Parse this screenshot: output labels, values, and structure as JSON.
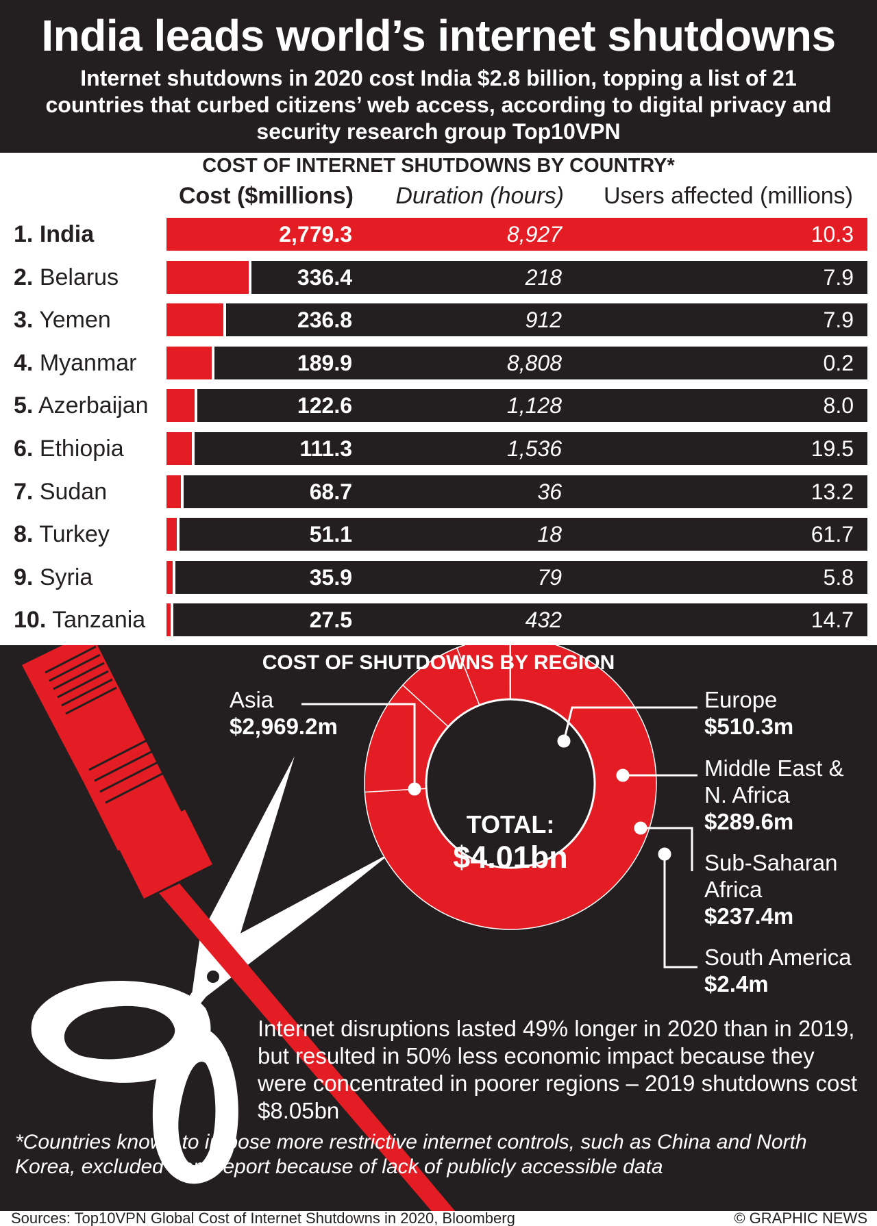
{
  "header": {
    "title": "India leads world’s internet shutdowns",
    "subtitle": "Internet shutdowns in 2020 cost India $2.8 billion, topping a list of 21 countries that curbed citizens’ web access, according to digital privacy and security research group Top10VPN"
  },
  "colors": {
    "dark": "#231f20",
    "red": "#e31d23",
    "white": "#ffffff"
  },
  "chart_data": [
    {
      "type": "bar",
      "title": "COST OF INTERNET SHUTDOWNS BY COUNTRY*",
      "columns": [
        "Cost ($millions)",
        "Duration (hours)",
        "Users affected (millions)"
      ],
      "rows": [
        {
          "rank": "1.",
          "country": "India",
          "cost": "2,779.3",
          "cost_value": 2779.3,
          "duration": "8,927",
          "users": "10.3"
        },
        {
          "rank": "2.",
          "country": "Belarus",
          "cost": "336.4",
          "cost_value": 336.4,
          "duration": "218",
          "users": "7.9"
        },
        {
          "rank": "3.",
          "country": "Yemen",
          "cost": "236.8",
          "cost_value": 236.8,
          "duration": "912",
          "users": "7.9"
        },
        {
          "rank": "4.",
          "country": "Myanmar",
          "cost": "189.9",
          "cost_value": 189.9,
          "duration": "8,808",
          "users": "0.2"
        },
        {
          "rank": "5.",
          "country": "Azerbaijan",
          "cost": "122.6",
          "cost_value": 122.6,
          "duration": "1,128",
          "users": "8.0"
        },
        {
          "rank": "6.",
          "country": "Ethiopia",
          "cost": "111.3",
          "cost_value": 111.3,
          "duration": "1,536",
          "users": "19.5"
        },
        {
          "rank": "7.",
          "country": "Sudan",
          "cost": "68.7",
          "cost_value": 68.7,
          "duration": "36",
          "users": "13.2"
        },
        {
          "rank": "8.",
          "country": "Turkey",
          "cost": "51.1",
          "cost_value": 51.1,
          "duration": "18",
          "users": "61.7"
        },
        {
          "rank": "9.",
          "country": "Syria",
          "cost": "35.9",
          "cost_value": 35.9,
          "duration": "79",
          "users": "5.8"
        },
        {
          "rank": "10.",
          "country": "Tanzania",
          "cost": "27.5",
          "cost_value": 27.5,
          "duration": "432",
          "users": "14.7"
        }
      ]
    },
    {
      "type": "pie",
      "title": "COST OF SHUTDOWNS BY REGION",
      "total_label": "TOTAL:",
      "total_value": "$4.01bn",
      "slices": [
        {
          "id": "asia",
          "name": "Asia",
          "label": "$2,969.2m",
          "value": 2969.2
        },
        {
          "id": "europe",
          "name": "Europe",
          "label": "$510.3m",
          "value": 510.3
        },
        {
          "id": "mena",
          "name": "Middle East & N. Africa",
          "label": "$289.6m",
          "value": 289.6
        },
        {
          "id": "ssa",
          "name": "Sub-Saharan Africa",
          "label": "$237.4m",
          "value": 237.4
        },
        {
          "id": "sam",
          "name": "South America",
          "label": "$2.4m",
          "value": 2.4
        }
      ]
    }
  ],
  "note": "Internet disruptions lasted 49% longer in 2020 than in 2019, but resulted in 50% less economic impact because they were concentrated in poorer regions – 2019 shutdowns cost $8.05bn",
  "footnote": "*Countries known to impose more restrictive internet controls, such as China and North Korea, excluded from report because of lack of publicly accessible data",
  "footer": {
    "sources": "Sources: Top10VPN Global Cost of Internet Shutdowns in 2020, Bloomberg",
    "credit": "© GRAPHIC NEWS"
  }
}
